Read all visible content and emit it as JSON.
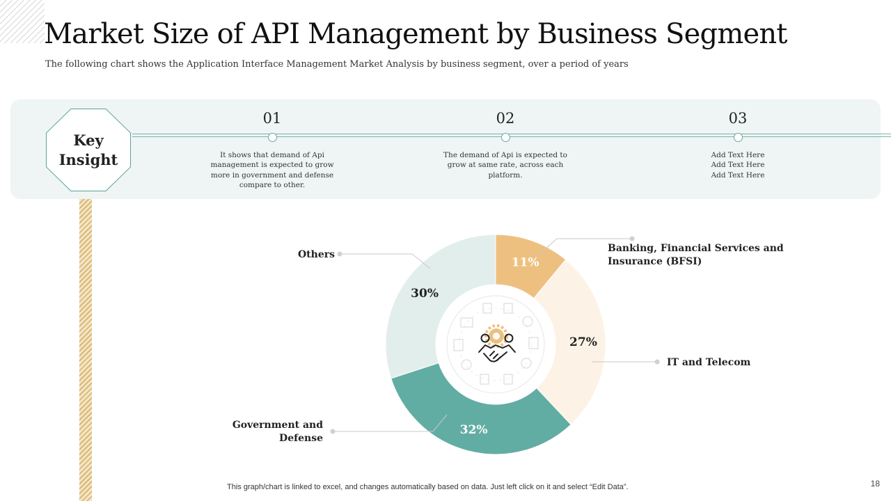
{
  "title": "Market Size of API Management by Business Segment",
  "subtitle": "The following chart shows the Application Interface Management Market Analysis by business segment, over a period of years",
  "key_insight": {
    "label": "Key\nInsight",
    "steps": [
      {
        "number": "01",
        "text": "It shows that demand of Api\nmanagement is expected to grow\nmore in government and defense\ncompare to other."
      },
      {
        "number": "02",
        "text": "The demand of Api is expected to\ngrow at same rate, across each\nplatform."
      },
      {
        "number": "03",
        "text": "Add Text Here\nAdd Text Here\nAdd Text Here"
      }
    ]
  },
  "chart_data": {
    "type": "pie",
    "variant": "donut",
    "title": "",
    "categories": [
      "Banking, Financial Services and Insurance (BFSI)",
      "IT and Telecom",
      "Government and Defense",
      "Others"
    ],
    "values": [
      11,
      27,
      32,
      30
    ],
    "labels": [
      "11%",
      "27%",
      "32%",
      "30%"
    ],
    "colors": [
      "#eec07f",
      "#fcf3e6",
      "#62ada3",
      "#e2eeec"
    ],
    "label_colors": [
      "#ffffff",
      "#222222",
      "#ffffff",
      "#222222"
    ],
    "legend_placement": "callouts around donut",
    "center_icon": "handshake-gear-icon"
  },
  "footer": "This graph/chart is linked to excel,  and changes automatically based on data. Just left click on it and select “Edit Data”.",
  "page_number": "18"
}
